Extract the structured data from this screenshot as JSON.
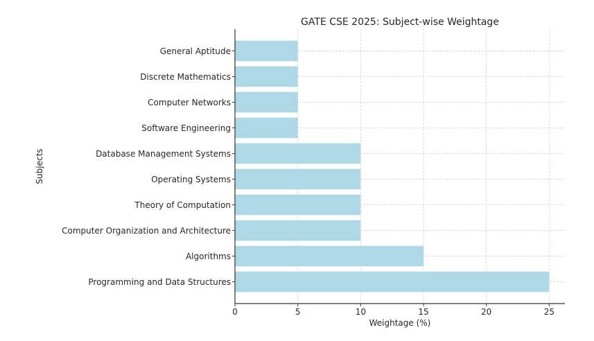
{
  "chart_data": {
    "type": "bar",
    "orientation": "horizontal",
    "title": "GATE CSE 2025: Subject-wise Weightage",
    "xlabel": "Weightage (%)",
    "ylabel": "Subjects",
    "categories": [
      "Programming and Data Structures",
      "Algorithms",
      "Computer Organization and Architecture",
      "Theory of Computation",
      "Operating Systems",
      "Database Management Systems",
      "Software Engineering",
      "Computer Networks",
      "Discrete Mathematics",
      "General Aptitude"
    ],
    "values": [
      25,
      15,
      10,
      10,
      10,
      10,
      5,
      5,
      5,
      5
    ],
    "xlim": [
      0,
      26.25
    ],
    "xticks": [
      "0",
      "5",
      "10",
      "15",
      "20",
      "25"
    ],
    "grid": true,
    "bar_color": "#add8e6"
  }
}
